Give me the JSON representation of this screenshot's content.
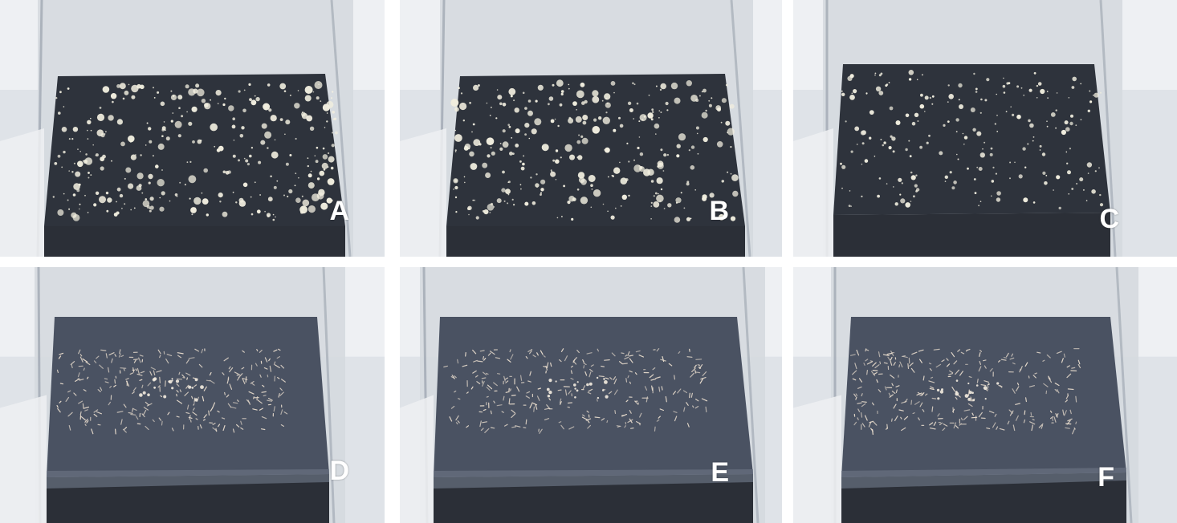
{
  "figure": {
    "panels": [
      {
        "id": "A",
        "label": "A",
        "particle_style": "granules",
        "container_shape": "raised"
      },
      {
        "id": "B",
        "label": "B",
        "particle_style": "granules",
        "container_shape": "raised"
      },
      {
        "id": "C",
        "label": "C",
        "particle_style": "small-granules",
        "container_shape": "raised"
      },
      {
        "id": "D",
        "label": "D",
        "particle_style": "filaments",
        "container_shape": "lowered"
      },
      {
        "id": "E",
        "label": "E",
        "particle_style": "filaments",
        "container_shape": "lowered"
      },
      {
        "id": "F",
        "label": "F",
        "particle_style": "filaments",
        "container_shape": "lowered"
      }
    ],
    "colors": {
      "background": "#ffffff",
      "liquid_dark": "#2b2f37",
      "liquid_surface": "#4a5262",
      "particles": "#f1eedf",
      "label_text": "#ffffff"
    }
  }
}
